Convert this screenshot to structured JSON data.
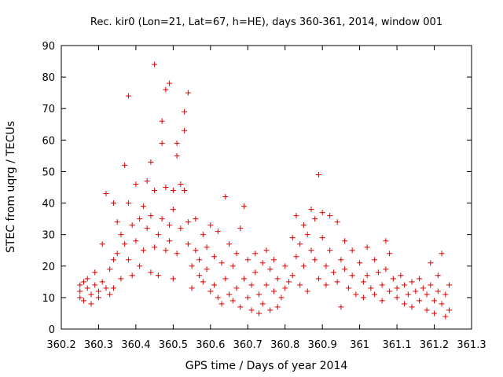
{
  "chart_data": {
    "type": "scatter",
    "title": "Rec. kir0 (Lon=21, Lat=67, h=HE), days 360-361, 2014, window 001",
    "xlabel": "GPS time / Days of year 2014",
    "ylabel": "STEC from uqrg / TECUs",
    "xlim": [
      360.2,
      361.3
    ],
    "ylim": [
      0,
      90
    ],
    "xticks": [
      360.2,
      360.3,
      360.4,
      360.5,
      360.6,
      360.7,
      360.8,
      360.9,
      361,
      361.1,
      361.2,
      361.3
    ],
    "xtick_labels": [
      "360.2",
      "360.3",
      "360.4",
      "360.5",
      "360.6",
      "360.7",
      "360.8",
      "360.9",
      "361",
      "361.1",
      "361.2",
      "361.3"
    ],
    "yticks": [
      0,
      10,
      20,
      30,
      40,
      50,
      60,
      70,
      80,
      90
    ],
    "ytick_labels": [
      "0",
      "10",
      "20",
      "30",
      "40",
      "50",
      "60",
      "70",
      "80",
      "90"
    ],
    "marker": "plus",
    "color": "#e00000",
    "grid": false,
    "points": [
      [
        360.25,
        14
      ],
      [
        360.25,
        12
      ],
      [
        360.25,
        10
      ],
      [
        360.26,
        15
      ],
      [
        360.26,
        9
      ],
      [
        360.27,
        13
      ],
      [
        360.27,
        16
      ],
      [
        360.28,
        11
      ],
      [
        360.28,
        8
      ],
      [
        360.29,
        14
      ],
      [
        360.29,
        18
      ],
      [
        360.3,
        12
      ],
      [
        360.3,
        10
      ],
      [
        360.31,
        27
      ],
      [
        360.31,
        15
      ],
      [
        360.32,
        43
      ],
      [
        360.32,
        13
      ],
      [
        360.33,
        11
      ],
      [
        360.33,
        19
      ],
      [
        360.34,
        40
      ],
      [
        360.34,
        22
      ],
      [
        360.34,
        13
      ],
      [
        360.35,
        34
      ],
      [
        360.35,
        24
      ],
      [
        360.36,
        30
      ],
      [
        360.36,
        16
      ],
      [
        360.37,
        52
      ],
      [
        360.37,
        27
      ],
      [
        360.38,
        74
      ],
      [
        360.38,
        40
      ],
      [
        360.38,
        22
      ],
      [
        360.39,
        17
      ],
      [
        360.39,
        33
      ],
      [
        360.4,
        46
      ],
      [
        360.4,
        28
      ],
      [
        360.41,
        20
      ],
      [
        360.41,
        35
      ],
      [
        360.42,
        25
      ],
      [
        360.42,
        39
      ],
      [
        360.43,
        32
      ],
      [
        360.43,
        47
      ],
      [
        360.44,
        18
      ],
      [
        360.44,
        36
      ],
      [
        360.44,
        53
      ],
      [
        360.45,
        26
      ],
      [
        360.45,
        84
      ],
      [
        360.45,
        44
      ],
      [
        360.46,
        30
      ],
      [
        360.46,
        17
      ],
      [
        360.47,
        66
      ],
      [
        360.47,
        59
      ],
      [
        360.47,
        35
      ],
      [
        360.48,
        25
      ],
      [
        360.48,
        45
      ],
      [
        360.48,
        76
      ],
      [
        360.49,
        78
      ],
      [
        360.49,
        28
      ],
      [
        360.49,
        33
      ],
      [
        360.5,
        44
      ],
      [
        360.5,
        16
      ],
      [
        360.5,
        38
      ],
      [
        360.51,
        55
      ],
      [
        360.51,
        59
      ],
      [
        360.51,
        24
      ],
      [
        360.52,
        46
      ],
      [
        360.52,
        32
      ],
      [
        360.53,
        69
      ],
      [
        360.53,
        63
      ],
      [
        360.53,
        44
      ],
      [
        360.54,
        75
      ],
      [
        360.54,
        34
      ],
      [
        360.54,
        27
      ],
      [
        360.55,
        20
      ],
      [
        360.55,
        13
      ],
      [
        360.56,
        25
      ],
      [
        360.56,
        35
      ],
      [
        360.57,
        22
      ],
      [
        360.57,
        17
      ],
      [
        360.58,
        30
      ],
      [
        360.58,
        15
      ],
      [
        360.59,
        26
      ],
      [
        360.59,
        19
      ],
      [
        360.6,
        33
      ],
      [
        360.6,
        12
      ],
      [
        360.61,
        23
      ],
      [
        360.61,
        14
      ],
      [
        360.62,
        31
      ],
      [
        360.62,
        10
      ],
      [
        360.63,
        21
      ],
      [
        360.63,
        8
      ],
      [
        360.64,
        42
      ],
      [
        360.64,
        16
      ],
      [
        360.65,
        27
      ],
      [
        360.65,
        11
      ],
      [
        360.66,
        20
      ],
      [
        360.66,
        9
      ],
      [
        360.67,
        24
      ],
      [
        360.67,
        13
      ],
      [
        360.68,
        32
      ],
      [
        360.68,
        7
      ],
      [
        360.69,
        16
      ],
      [
        360.69,
        39
      ],
      [
        360.7,
        22
      ],
      [
        360.7,
        10
      ],
      [
        360.71,
        14
      ],
      [
        360.71,
        6
      ],
      [
        360.72,
        18
      ],
      [
        360.72,
        24
      ],
      [
        360.73,
        11
      ],
      [
        360.73,
        5
      ],
      [
        360.74,
        21
      ],
      [
        360.74,
        8
      ],
      [
        360.75,
        25
      ],
      [
        360.75,
        14
      ],
      [
        360.76,
        6
      ],
      [
        360.76,
        19
      ],
      [
        360.77,
        12
      ],
      [
        360.77,
        22
      ],
      [
        360.78,
        7
      ],
      [
        360.78,
        16
      ],
      [
        360.79,
        10
      ],
      [
        360.8,
        20
      ],
      [
        360.8,
        13
      ],
      [
        360.81,
        15
      ],
      [
        360.82,
        29
      ],
      [
        360.82,
        17
      ],
      [
        360.83,
        36
      ],
      [
        360.83,
        23
      ],
      [
        360.84,
        27
      ],
      [
        360.84,
        14
      ],
      [
        360.85,
        33
      ],
      [
        360.85,
        20
      ],
      [
        360.86,
        30
      ],
      [
        360.86,
        12
      ],
      [
        360.87,
        38
      ],
      [
        360.87,
        25
      ],
      [
        360.88,
        35
      ],
      [
        360.88,
        22
      ],
      [
        360.89,
        49
      ],
      [
        360.89,
        16
      ],
      [
        360.9,
        37
      ],
      [
        360.9,
        29
      ],
      [
        360.91,
        20
      ],
      [
        360.91,
        14
      ],
      [
        360.92,
        36
      ],
      [
        360.92,
        25
      ],
      [
        360.93,
        18
      ],
      [
        360.94,
        34
      ],
      [
        360.94,
        15
      ],
      [
        360.95,
        22
      ],
      [
        360.95,
        7
      ],
      [
        360.96,
        28
      ],
      [
        360.96,
        19
      ],
      [
        360.97,
        13
      ],
      [
        360.98,
        25
      ],
      [
        360.98,
        17
      ],
      [
        360.99,
        11
      ],
      [
        361.0,
        21
      ],
      [
        361.01,
        15
      ],
      [
        361.01,
        10
      ],
      [
        361.02,
        26
      ],
      [
        361.02,
        17
      ],
      [
        361.03,
        13
      ],
      [
        361.04,
        22
      ],
      [
        361.04,
        11
      ],
      [
        361.05,
        18
      ],
      [
        361.06,
        14
      ],
      [
        361.06,
        9
      ],
      [
        361.07,
        28
      ],
      [
        361.07,
        19
      ],
      [
        361.08,
        12
      ],
      [
        361.08,
        24
      ],
      [
        361.09,
        16
      ],
      [
        361.1,
        13
      ],
      [
        361.1,
        10
      ],
      [
        361.11,
        17
      ],
      [
        361.12,
        14
      ],
      [
        361.12,
        8
      ],
      [
        361.13,
        11
      ],
      [
        361.14,
        15
      ],
      [
        361.14,
        7
      ],
      [
        361.15,
        12
      ],
      [
        361.16,
        16
      ],
      [
        361.16,
        9
      ],
      [
        361.17,
        13
      ],
      [
        361.18,
        6
      ],
      [
        361.18,
        11
      ],
      [
        361.19,
        21
      ],
      [
        361.19,
        14
      ],
      [
        361.2,
        9
      ],
      [
        361.2,
        5
      ],
      [
        361.21,
        12
      ],
      [
        361.21,
        17
      ],
      [
        361.22,
        24
      ],
      [
        361.22,
        8
      ],
      [
        361.23,
        11
      ],
      [
        361.23,
        4
      ],
      [
        361.24,
        14
      ],
      [
        361.24,
        6
      ]
    ]
  }
}
